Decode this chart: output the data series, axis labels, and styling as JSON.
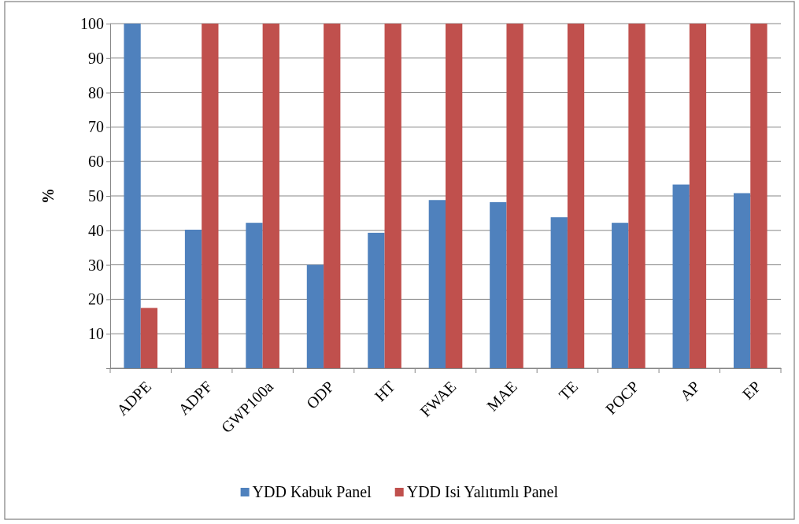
{
  "chart_data": {
    "type": "bar",
    "ylabel": "%",
    "categories": [
      "ADPE",
      "ADPF",
      "GWP100a",
      "ODP",
      "HT",
      "FWAE",
      "MAE",
      "TE",
      "POCP",
      "AP",
      "EP"
    ],
    "series": [
      {
        "name": "YDD Kabuk Panel",
        "color": "#4f81bd",
        "values": [
          100,
          40.2,
          42.2,
          30,
          39.3,
          48.8,
          48.2,
          43.8,
          42.2,
          53.3,
          50.8
        ]
      },
      {
        "name": "YDD Isi Yalıtımlı Panel",
        "color": "#c0504d",
        "values": [
          17.5,
          100,
          100,
          100,
          100,
          100,
          100,
          100,
          100,
          100,
          100
        ]
      }
    ],
    "ylim": [
      0,
      100
    ],
    "yticks": [
      {
        "value": 0,
        "label": null
      },
      10,
      20,
      30,
      40,
      50,
      60,
      70,
      80,
      90,
      100
    ],
    "grid": "y",
    "legend": "bottom"
  }
}
